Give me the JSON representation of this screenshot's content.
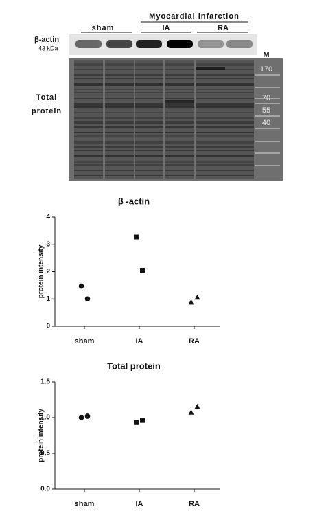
{
  "blot": {
    "group_label": "Myocardial infarction",
    "lanes": [
      "sham",
      "IA",
      "RA"
    ],
    "band_label": "β-actin",
    "band_size": "43 kDa",
    "stain_label": "Total protein",
    "marker_label": "M",
    "marker_sizes": [
      "170",
      "70",
      "55",
      "40"
    ]
  },
  "chart_data": [
    {
      "type": "dot",
      "title": "β -actin",
      "y_label": "protein intensity",
      "categories": [
        "sham",
        "IA",
        "RA"
      ],
      "markers": [
        "circle",
        "square",
        "triangle"
      ],
      "color": "#111111",
      "values": [
        [
          1.47,
          1.0
        ],
        [
          3.27,
          2.05
        ],
        [
          0.87,
          1.05
        ]
      ],
      "ylim": [
        0,
        4
      ],
      "yticks": [
        0,
        1,
        2,
        3,
        4
      ]
    },
    {
      "type": "dot",
      "title": "Total protein",
      "y_label": "protein intensity",
      "categories": [
        "sham",
        "IA",
        "RA"
      ],
      "markers": [
        "circle",
        "square",
        "triangle"
      ],
      "color": "#111111",
      "values": [
        [
          1.0,
          1.02
        ],
        [
          0.93,
          0.96
        ],
        [
          1.07,
          1.15
        ]
      ],
      "ylim": [
        0,
        1.5
      ],
      "yticks": [
        {
          "value": 0,
          "label": "0.0"
        },
        0.5,
        {
          "value": 1,
          "label": "1.0"
        },
        1.5
      ]
    }
  ]
}
